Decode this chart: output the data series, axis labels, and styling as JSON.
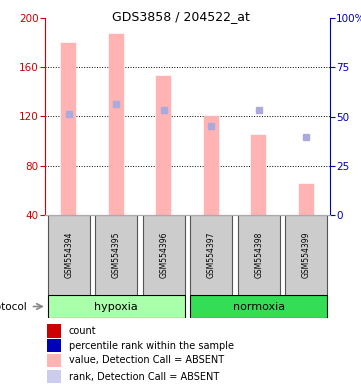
{
  "title": "GDS3858 / 204522_at",
  "samples": [
    "GSM554394",
    "GSM554395",
    "GSM554396",
    "GSM554397",
    "GSM554398",
    "GSM554399"
  ],
  "pink_bar_values": [
    180,
    187,
    153,
    120,
    105,
    65
  ],
  "blue_marker_values": [
    122,
    130,
    125,
    112,
    125,
    103
  ],
  "bar_bottom": 40,
  "ylim_left": [
    40,
    200
  ],
  "ylim_right": [
    0,
    100
  ],
  "yticks_left": [
    40,
    80,
    120,
    160,
    200
  ],
  "yticks_right": [
    0,
    25,
    50,
    75,
    100
  ],
  "ytick_labels_right": [
    "0",
    "25",
    "50",
    "75",
    "100%"
  ],
  "groups": [
    {
      "label": "hypoxia",
      "indices": [
        0,
        1,
        2
      ],
      "color": "#aaffaa"
    },
    {
      "label": "normoxia",
      "indices": [
        3,
        4,
        5
      ],
      "color": "#33dd55"
    }
  ],
  "protocol_label": "protocol",
  "pink_bar_color": "#ffb3b3",
  "blue_marker_color": "#aaaadd",
  "legend_items": [
    {
      "color": "#cc0000",
      "label": "count"
    },
    {
      "color": "#0000bb",
      "label": "percentile rank within the sample"
    },
    {
      "color": "#ffb3b3",
      "label": "value, Detection Call = ABSENT"
    },
    {
      "color": "#ccccee",
      "label": "rank, Detection Call = ABSENT"
    }
  ],
  "axis_left_color": "#cc0000",
  "axis_right_color": "#0000bb",
  "background_color": "#ffffff",
  "sample_box_color": "#cccccc",
  "sample_box_edge": "#555555"
}
